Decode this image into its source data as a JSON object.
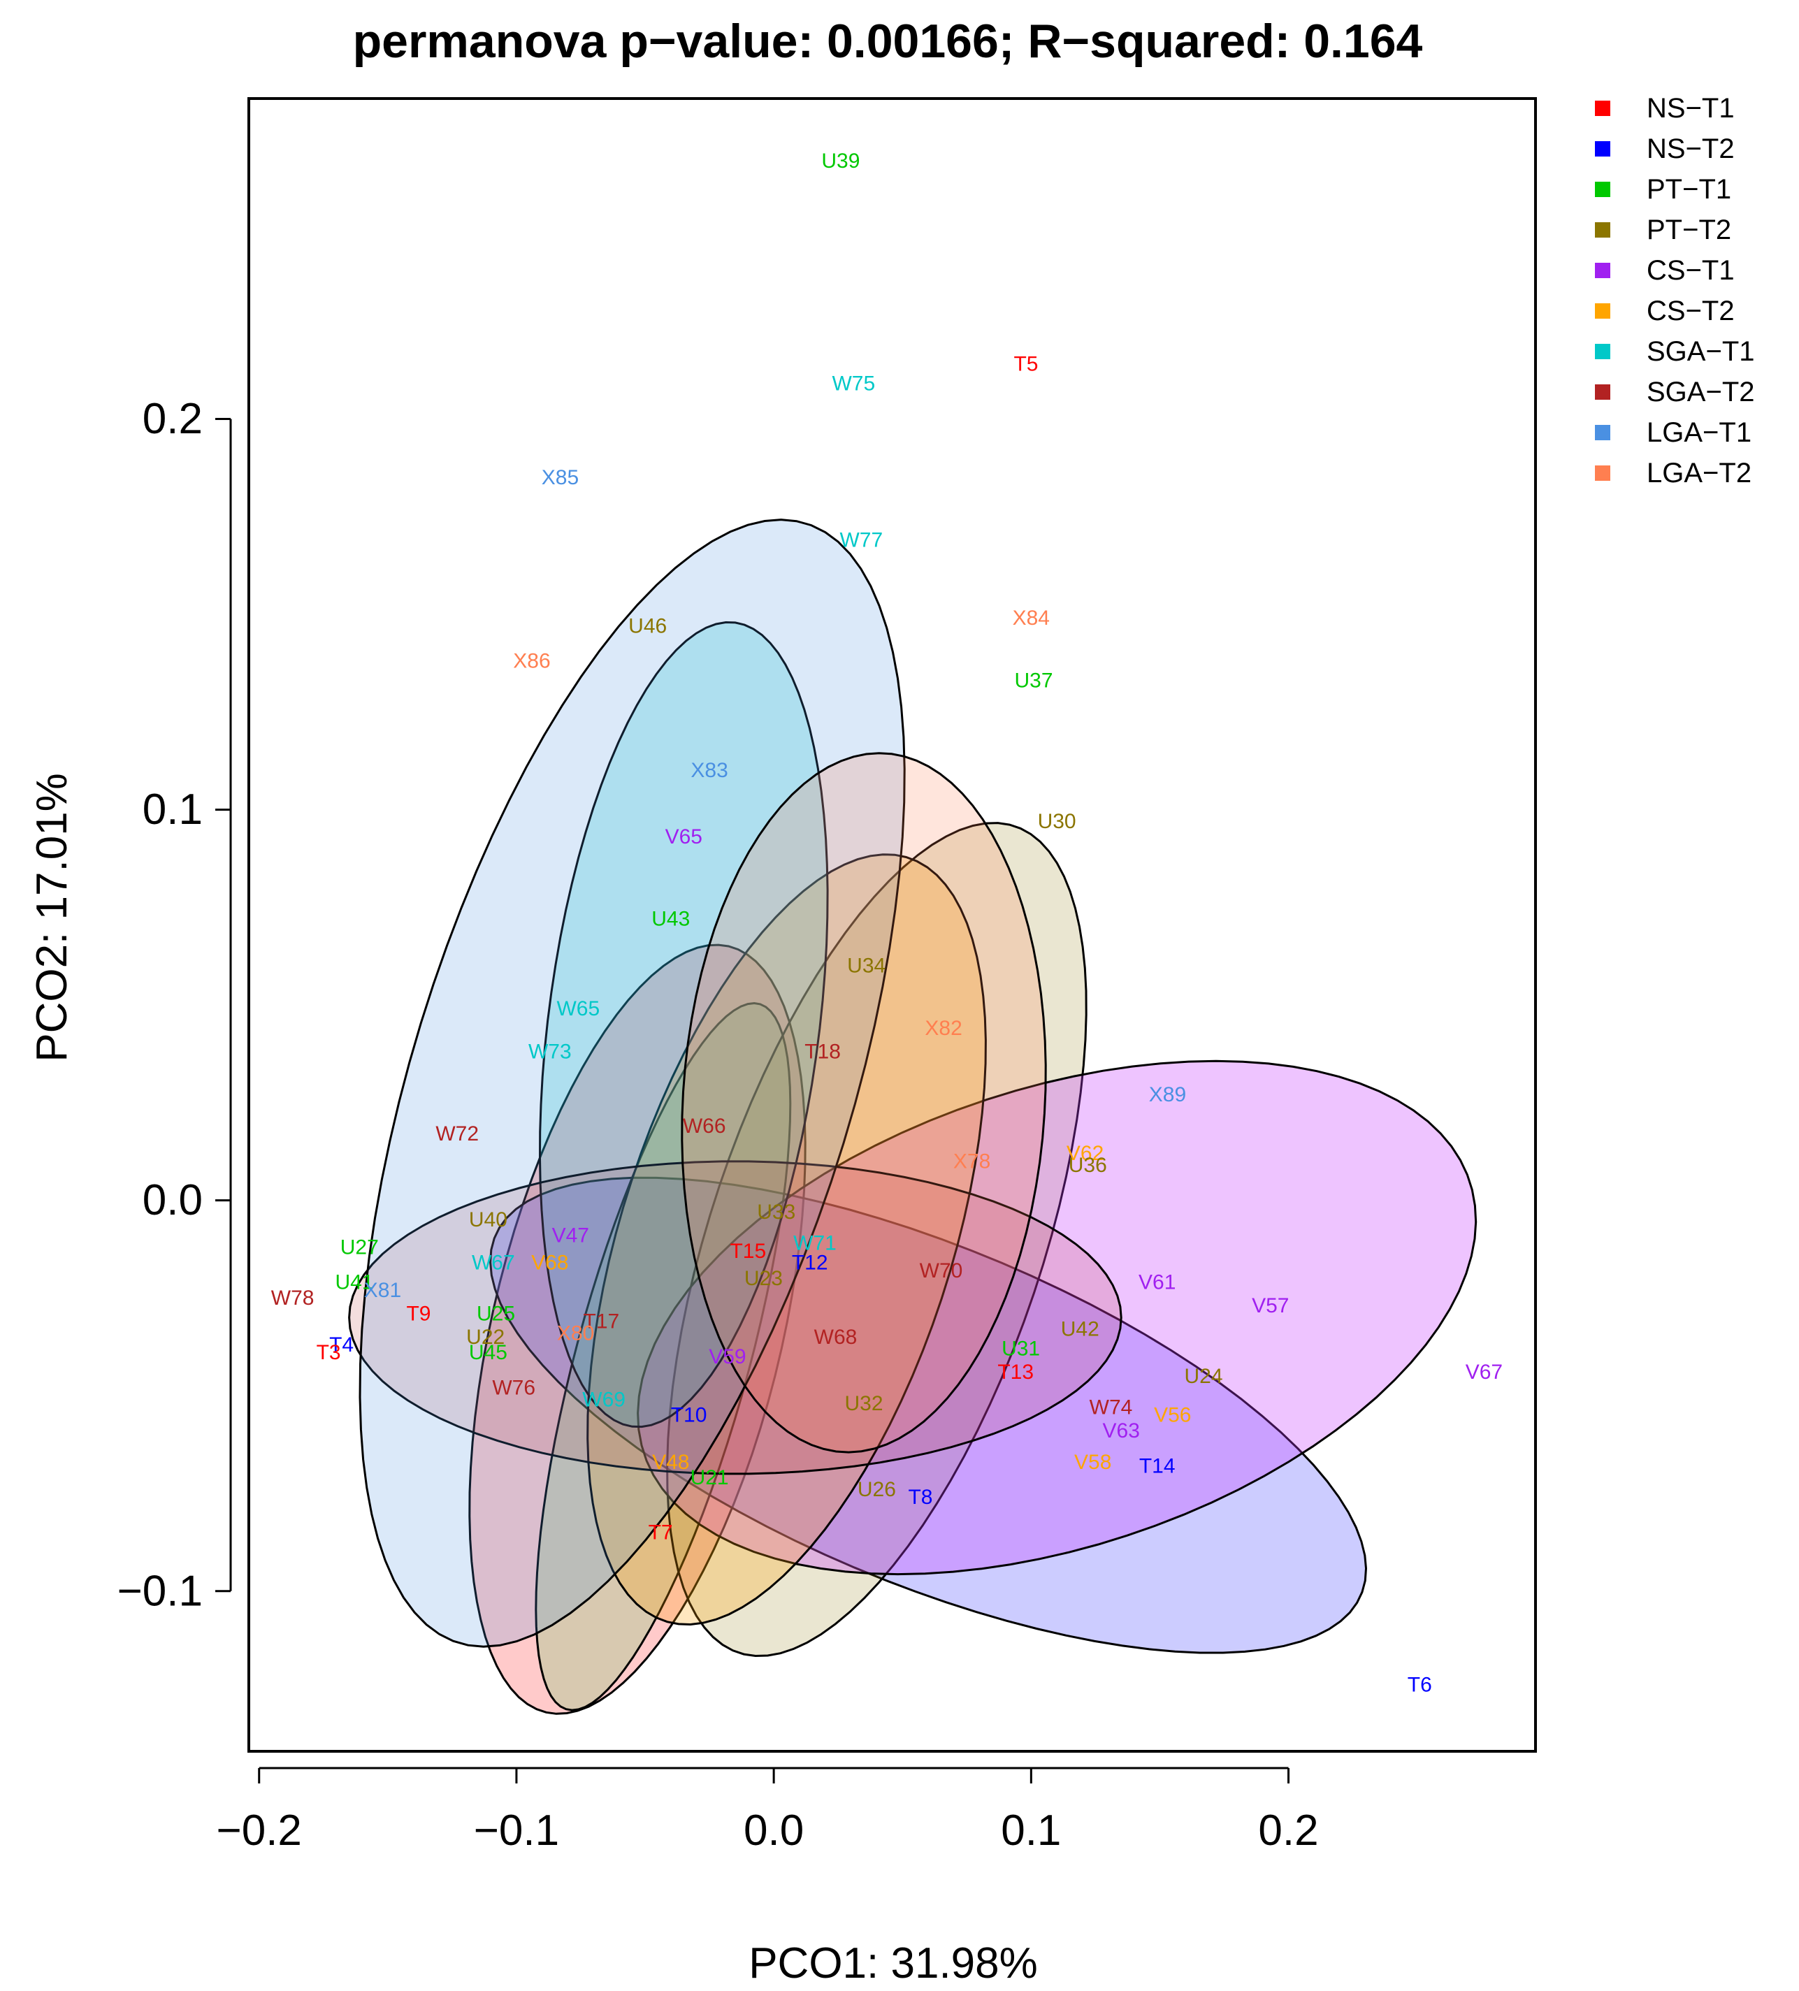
{
  "chart_data": {
    "type": "scatter",
    "title": "permanova p−value: 0.00166; R−squared: 0.164",
    "xlabel": "PCO1: 31.98%",
    "ylabel": "PCO2: 17.01%",
    "xlim": [
      -0.204,
      0.296
    ],
    "ylim": [
      -0.141,
      0.282
    ],
    "x_ticks": [
      {
        "value": -0.2,
        "label": "−0.2"
      },
      {
        "value": -0.1,
        "label": "−0.1"
      },
      {
        "value": 0.0,
        "label": "0.0"
      },
      {
        "value": 0.1,
        "label": "0.1"
      },
      {
        "value": 0.2,
        "label": "0.2"
      }
    ],
    "y_ticks": [
      {
        "value": -0.1,
        "label": "−0.1"
      },
      {
        "value": 0.0,
        "label": "0.0"
      },
      {
        "value": 0.1,
        "label": "0.1"
      },
      {
        "value": 0.2,
        "label": "0.2"
      }
    ],
    "grid": false,
    "legend_position": "outside-right-top",
    "groups": [
      {
        "name": "NS−T1",
        "color": "#ff0000"
      },
      {
        "name": "NS−T2",
        "color": "#0000ff"
      },
      {
        "name": "PT−T1",
        "color": "#00c800"
      },
      {
        "name": "PT−T2",
        "color": "#8b7500"
      },
      {
        "name": "CS−T1",
        "color": "#a020f0"
      },
      {
        "name": "CS−T2",
        "color": "#ffa500"
      },
      {
        "name": "SGA−T1",
        "color": "#00c8c8"
      },
      {
        "name": "SGA−T2",
        "color": "#b22222"
      },
      {
        "name": "LGA−T1",
        "color": "#4a90e2"
      },
      {
        "name": "LGA−T2",
        "color": "#ff7f50"
      }
    ],
    "ellipses": [
      {
        "group": 0,
        "cx": -0.053,
        "cy": -0.033,
        "rx": 0.105,
        "ry": 0.054,
        "angle": 66,
        "fill": "rgba(255,80,80,0.30)"
      },
      {
        "group": 1,
        "cx": 0.06,
        "cy": -0.055,
        "rx": 0.175,
        "ry": 0.045,
        "angle": -14,
        "fill": "rgba(110,110,255,0.35)"
      },
      {
        "group": 2,
        "cx": -0.043,
        "cy": -0.04,
        "rx": 0.098,
        "ry": 0.032,
        "angle": 66,
        "fill": "rgba(100,200,100,0.25)"
      },
      {
        "group": 3,
        "cx": 0.04,
        "cy": -0.01,
        "rx": 0.12,
        "ry": 0.06,
        "angle": 58,
        "fill": "rgba(139,117,0,0.18)"
      },
      {
        "group": 4,
        "cx": 0.11,
        "cy": -0.03,
        "rx": 0.165,
        "ry": 0.06,
        "angle": 10,
        "fill": "rgba(200,60,255,0.30)"
      },
      {
        "group": 5,
        "cx": 0.005,
        "cy": -0.01,
        "rx": 0.11,
        "ry": 0.06,
        "angle": 58,
        "fill": "rgba(255,160,0,0.25)"
      },
      {
        "group": 6,
        "cx": -0.035,
        "cy": 0.045,
        "rx": 0.105,
        "ry": 0.052,
        "angle": 77,
        "fill": "rgba(0,200,200,0.22)"
      },
      {
        "group": 7,
        "cx": -0.015,
        "cy": -0.03,
        "rx": 0.15,
        "ry": 0.04,
        "angle": 0,
        "fill": "rgba(178,34,34,0.15)"
      },
      {
        "group": 8,
        "cx": -0.055,
        "cy": 0.03,
        "rx": 0.16,
        "ry": 0.08,
        "angle": 60,
        "fill": "rgba(74,144,226,0.20)"
      },
      {
        "group": 9,
        "cx": 0.035,
        "cy": 0.025,
        "rx": 0.09,
        "ry": 0.07,
        "angle": 80,
        "fill": "rgba(255,127,80,0.20)"
      }
    ],
    "points": [
      {
        "label": "U39",
        "x": 0.026,
        "y": 0.266,
        "group": 2
      },
      {
        "label": "T5",
        "x": 0.098,
        "y": 0.214,
        "group": 0
      },
      {
        "label": "W75",
        "x": 0.031,
        "y": 0.209,
        "group": 6
      },
      {
        "label": "X85",
        "x": -0.083,
        "y": 0.185,
        "group": 8
      },
      {
        "label": "W77",
        "x": 0.034,
        "y": 0.169,
        "group": 6
      },
      {
        "label": "X84",
        "x": 0.1,
        "y": 0.149,
        "group": 9
      },
      {
        "label": "U46",
        "x": -0.049,
        "y": 0.147,
        "group": 3
      },
      {
        "label": "X86",
        "x": -0.094,
        "y": 0.138,
        "group": 9
      },
      {
        "label": "U37",
        "x": 0.101,
        "y": 0.133,
        "group": 2
      },
      {
        "label": "X83",
        "x": -0.025,
        "y": 0.11,
        "group": 8
      },
      {
        "label": "U30",
        "x": 0.11,
        "y": 0.097,
        "group": 3
      },
      {
        "label": "V65",
        "x": -0.035,
        "y": 0.093,
        "group": 4
      },
      {
        "label": "U43",
        "x": -0.04,
        "y": 0.072,
        "group": 2
      },
      {
        "label": "U34",
        "x": 0.036,
        "y": 0.06,
        "group": 3
      },
      {
        "label": "W65",
        "x": -0.076,
        "y": 0.049,
        "group": 6
      },
      {
        "label": "X82",
        "x": 0.066,
        "y": 0.044,
        "group": 9
      },
      {
        "label": "W73",
        "x": -0.087,
        "y": 0.038,
        "group": 6
      },
      {
        "label": "T18",
        "x": 0.019,
        "y": 0.038,
        "group": 7
      },
      {
        "label": "X89",
        "x": 0.153,
        "y": 0.027,
        "group": 8
      },
      {
        "label": "W66",
        "x": -0.027,
        "y": 0.019,
        "group": 7
      },
      {
        "label": "W72",
        "x": -0.123,
        "y": 0.017,
        "group": 7
      },
      {
        "label": "V62",
        "x": 0.121,
        "y": 0.012,
        "group": 5
      },
      {
        "label": "U36",
        "x": 0.122,
        "y": 0.009,
        "group": 3
      },
      {
        "label": "X78",
        "x": 0.077,
        "y": 0.01,
        "group": 9
      },
      {
        "label": "U33",
        "x": 0.001,
        "y": -0.003,
        "group": 3
      },
      {
        "label": "U40",
        "x": -0.111,
        "y": -0.005,
        "group": 3
      },
      {
        "label": "V47",
        "x": -0.079,
        "y": -0.009,
        "group": 4
      },
      {
        "label": "W71",
        "x": 0.016,
        "y": -0.011,
        "group": 6
      },
      {
        "label": "U27",
        "x": -0.161,
        "y": -0.012,
        "group": 2
      },
      {
        "label": "T15",
        "x": -0.01,
        "y": -0.013,
        "group": 0
      },
      {
        "label": "W67",
        "x": -0.109,
        "y": -0.016,
        "group": 6
      },
      {
        "label": "V68",
        "x": -0.087,
        "y": -0.016,
        "group": 5
      },
      {
        "label": "T12",
        "x": 0.014,
        "y": -0.016,
        "group": 1
      },
      {
        "label": "W70",
        "x": 0.065,
        "y": -0.018,
        "group": 7
      },
      {
        "label": "V61",
        "x": 0.149,
        "y": -0.021,
        "group": 4
      },
      {
        "label": "U41",
        "x": -0.163,
        "y": -0.021,
        "group": 2
      },
      {
        "label": "U23",
        "x": -0.004,
        "y": -0.02,
        "group": 3
      },
      {
        "label": "X81",
        "x": -0.152,
        "y": -0.023,
        "group": 8
      },
      {
        "label": "W78",
        "x": -0.187,
        "y": -0.025,
        "group": 7
      },
      {
        "label": "V57",
        "x": 0.193,
        "y": -0.027,
        "group": 4
      },
      {
        "label": "T9",
        "x": -0.138,
        "y": -0.029,
        "group": 0
      },
      {
        "label": "U25",
        "x": -0.108,
        "y": -0.029,
        "group": 2
      },
      {
        "label": "T17",
        "x": -0.067,
        "y": -0.031,
        "group": 7
      },
      {
        "label": "U42",
        "x": 0.119,
        "y": -0.033,
        "group": 3
      },
      {
        "label": "X80",
        "x": -0.077,
        "y": -0.034,
        "group": 9
      },
      {
        "label": "W68",
        "x": 0.024,
        "y": -0.035,
        "group": 7
      },
      {
        "label": "U22",
        "x": -0.112,
        "y": -0.035,
        "group": 3
      },
      {
        "label": "T4",
        "x": -0.168,
        "y": -0.037,
        "group": 1
      },
      {
        "label": "U31",
        "x": 0.096,
        "y": -0.038,
        "group": 2
      },
      {
        "label": "T3",
        "x": -0.173,
        "y": -0.039,
        "group": 0
      },
      {
        "label": "U45",
        "x": -0.111,
        "y": -0.039,
        "group": 2
      },
      {
        "label": "V59",
        "x": -0.018,
        "y": -0.04,
        "group": 4
      },
      {
        "label": "T13",
        "x": 0.094,
        "y": -0.044,
        "group": 0
      },
      {
        "label": "U24",
        "x": 0.167,
        "y": -0.045,
        "group": 3
      },
      {
        "label": "V67",
        "x": 0.276,
        "y": -0.044,
        "group": 4
      },
      {
        "label": "W76",
        "x": -0.101,
        "y": -0.048,
        "group": 7
      },
      {
        "label": "W69",
        "x": -0.066,
        "y": -0.051,
        "group": 6
      },
      {
        "label": "U32",
        "x": 0.035,
        "y": -0.052,
        "group": 3
      },
      {
        "label": "W74",
        "x": 0.131,
        "y": -0.053,
        "group": 7
      },
      {
        "label": "T10",
        "x": -0.033,
        "y": -0.055,
        "group": 1
      },
      {
        "label": "V56",
        "x": 0.155,
        "y": -0.055,
        "group": 5
      },
      {
        "label": "V63",
        "x": 0.135,
        "y": -0.059,
        "group": 4
      },
      {
        "label": "V48",
        "x": -0.04,
        "y": -0.067,
        "group": 5
      },
      {
        "label": "V58",
        "x": 0.124,
        "y": -0.067,
        "group": 5
      },
      {
        "label": "T14",
        "x": 0.149,
        "y": -0.068,
        "group": 1
      },
      {
        "label": "U21",
        "x": -0.025,
        "y": -0.071,
        "group": 2
      },
      {
        "label": "U26",
        "x": 0.04,
        "y": -0.074,
        "group": 3
      },
      {
        "label": "T8",
        "x": 0.057,
        "y": -0.076,
        "group": 1
      },
      {
        "label": "T7",
        "x": -0.044,
        "y": -0.085,
        "group": 0
      },
      {
        "label": "T6",
        "x": 0.251,
        "y": -0.124,
        "group": 1
      }
    ]
  }
}
